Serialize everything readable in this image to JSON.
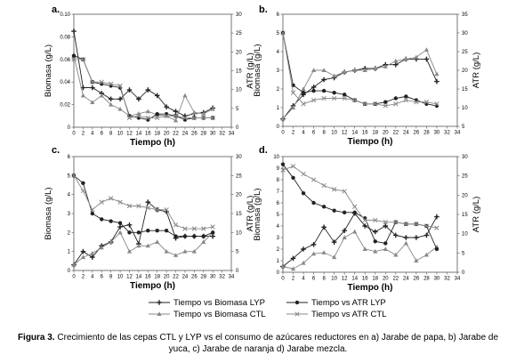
{
  "figure": {
    "caption_bold": "Figura 3.",
    "caption_text": "Crecimiento de las cepas CTL y LYP vs el consumo de azúcares reductores en a) Jarabe de papa, b) Jarabe de yuca, c) Jarabe de naranja d) Jarabe mezcla."
  },
  "legend": [
    {
      "label": "Tiempo vs Biomasa LYP",
      "marker": "plus",
      "color": "#222222"
    },
    {
      "label": "Tiempo vs ATR LYP",
      "marker": "dot",
      "color": "#222222"
    },
    {
      "label": "Tiempo vs Biomasa CTL",
      "marker": "triangle",
      "color": "#888888"
    },
    {
      "label": "Tiempo vs ATR CTL",
      "marker": "cross",
      "color": "#888888"
    }
  ],
  "chart_data": [
    {
      "panel": "a.",
      "type": "line",
      "xlabel": "Tiempo (h)",
      "ylabel": "Biomasa (g/L)",
      "y2label": "ATR (g/L)",
      "xlim": [
        0,
        34
      ],
      "xticks": [
        "0",
        "2",
        "4",
        "6",
        "8",
        "10",
        "12",
        "14",
        "16",
        "18",
        "20",
        "22",
        "24",
        "26",
        "28",
        "30",
        "32",
        "34"
      ],
      "ylim": [
        0,
        0.1
      ],
      "yticks": [
        "0",
        "0.02",
        "0.04",
        "0.06",
        "0.08",
        "0.10"
      ],
      "y2lim": [
        0,
        30
      ],
      "y2ticks": [
        "0",
        "5",
        "10",
        "15",
        "20",
        "25",
        "30"
      ],
      "series": [
        {
          "name": "Tiempo vs Biomasa LYP",
          "axis": "left",
          "x": [
            0,
            2,
            4,
            6,
            8,
            10,
            12,
            14,
            16,
            18,
            20,
            22,
            24,
            26,
            28,
            30
          ],
          "y": [
            0.085,
            0.035,
            0.035,
            0.03,
            0.025,
            0.025,
            0.033,
            0.025,
            0.033,
            0.028,
            0.018,
            0.014,
            0.01,
            0.012,
            0.013,
            0.017
          ]
        },
        {
          "name": "Tiempo vs Biomasa CTL",
          "axis": "left",
          "x": [
            0,
            2,
            4,
            6,
            8,
            10,
            12,
            14,
            16,
            18,
            20,
            22,
            24,
            26,
            28,
            30
          ],
          "y": [
            0.063,
            0.028,
            0.022,
            0.028,
            0.02,
            0.016,
            0.01,
            0.012,
            0.014,
            0.011,
            0.01,
            0.006,
            0.028,
            0.013,
            0.012,
            0.016
          ]
        },
        {
          "name": "Tiempo vs ATR LYP",
          "axis": "right",
          "x": [
            0,
            2,
            4,
            6,
            8,
            10,
            12,
            14,
            16,
            18,
            20,
            22,
            24,
            26,
            28,
            30
          ],
          "y": [
            19,
            18,
            12,
            11.5,
            11,
            10.5,
            3,
            2.5,
            2,
            3.5,
            3.5,
            3,
            2,
            2.5,
            2.5,
            2.5
          ]
        },
        {
          "name": "Tiempo vs ATR CTL",
          "axis": "right",
          "x": [
            0,
            2,
            4,
            6,
            8,
            10,
            12,
            14,
            16,
            18,
            20,
            22,
            24,
            26,
            28,
            30
          ],
          "y": [
            18,
            18,
            12,
            12,
            11.5,
            11,
            2.5,
            3,
            2.5,
            2.5,
            3,
            3,
            2.5,
            2.5,
            2.5,
            2.5
          ]
        }
      ]
    },
    {
      "panel": "b.",
      "type": "line",
      "xlabel": "Tiempo (h)",
      "ylabel": "Biomasa (g/L)",
      "y2label": "ATR (g/L)",
      "xlim": [
        0,
        34
      ],
      "xticks": [
        "0",
        "2",
        "4",
        "6",
        "8",
        "10",
        "12",
        "14",
        "16",
        "18",
        "20",
        "22",
        "24",
        "26",
        "28",
        "30",
        "32",
        "34"
      ],
      "ylim": [
        0,
        6
      ],
      "yticks": [
        "0",
        "1",
        "2",
        "3",
        "4",
        "5",
        "6"
      ],
      "y2lim": [
        5,
        35
      ],
      "y2ticks": [
        "5",
        "10",
        "15",
        "20",
        "25",
        "30",
        "35"
      ],
      "series": [
        {
          "name": "Tiempo vs Biomasa LYP",
          "axis": "left",
          "x": [
            0,
            2,
            4,
            6,
            8,
            10,
            12,
            14,
            16,
            18,
            20,
            22,
            24,
            26,
            28,
            30
          ],
          "y": [
            0.4,
            1.1,
            1.7,
            2.1,
            2.5,
            2.6,
            2.9,
            3.0,
            3.1,
            3.1,
            3.3,
            3.3,
            3.6,
            3.6,
            3.6,
            2.4
          ]
        },
        {
          "name": "Tiempo vs Biomasa CTL",
          "axis": "left",
          "x": [
            0,
            2,
            4,
            6,
            8,
            10,
            12,
            14,
            16,
            18,
            20,
            22,
            24,
            26,
            28,
            30
          ],
          "y": [
            0.4,
            1.0,
            2.0,
            3.0,
            3.0,
            2.7,
            2.9,
            3.0,
            3.0,
            3.1,
            3.2,
            3.5,
            3.6,
            3.7,
            4.1,
            2.8
          ]
        },
        {
          "name": "Tiempo vs ATR LYP",
          "axis": "right",
          "x": [
            0,
            2,
            4,
            6,
            8,
            10,
            12,
            14,
            16,
            18,
            20,
            22,
            24,
            26,
            28,
            30
          ],
          "y": [
            30,
            16,
            14,
            14.5,
            14.5,
            14,
            13.5,
            12,
            11,
            11,
            11.5,
            12.5,
            13,
            12,
            11,
            10.5
          ]
        },
        {
          "name": "Tiempo vs ATR CTL",
          "axis": "right",
          "x": [
            0,
            2,
            4,
            6,
            8,
            10,
            12,
            14,
            16,
            18,
            20,
            22,
            24,
            26,
            28,
            30
          ],
          "y": [
            30,
            14,
            11,
            12,
            12.5,
            12.5,
            12.5,
            12,
            11,
            11,
            10.5,
            11,
            12,
            11.5,
            11.5,
            11
          ]
        }
      ]
    },
    {
      "panel": "c.",
      "type": "line",
      "xlabel": "Tiempo (h)",
      "ylabel": "Biomasa (g/L)",
      "y2label": "ATR (g/L)",
      "xlim": [
        0,
        34
      ],
      "xticks": [
        "0",
        "2",
        "4",
        "6",
        "8",
        "10",
        "12",
        "14",
        "16",
        "18",
        "20",
        "22",
        "24",
        "26",
        "28",
        "30",
        "32",
        "34"
      ],
      "ylim": [
        0,
        6
      ],
      "yticks": [
        "0",
        "1",
        "2",
        "3",
        "4",
        "5",
        "6"
      ],
      "y2lim": [
        0,
        30
      ],
      "y2ticks": [
        "0",
        "5",
        "10",
        "15",
        "20",
        "25",
        "30"
      ],
      "series": [
        {
          "name": "Tiempo vs Biomasa LYP",
          "axis": "left",
          "x": [
            0,
            2,
            4,
            6,
            8,
            10,
            12,
            14,
            16,
            18,
            20,
            22,
            24,
            26,
            28,
            30
          ],
          "y": [
            0.3,
            1.0,
            0.7,
            1.3,
            1.5,
            2.3,
            2.4,
            1.4,
            3.6,
            3.2,
            3.1,
            1.7,
            1.8,
            1.8,
            1.8,
            1.8
          ]
        },
        {
          "name": "Tiempo vs Biomasa CTL",
          "axis": "left",
          "x": [
            0,
            2,
            4,
            6,
            8,
            10,
            12,
            14,
            16,
            18,
            20,
            22,
            24,
            26,
            28,
            30
          ],
          "y": [
            0.3,
            0.7,
            0.9,
            1.2,
            1.5,
            2.0,
            1.0,
            1.3,
            1.3,
            1.5,
            1.0,
            0.8,
            1.0,
            1.0,
            1.5,
            2.0
          ]
        },
        {
          "name": "Tiempo vs ATR LYP",
          "axis": "right",
          "x": [
            0,
            2,
            4,
            6,
            8,
            10,
            12,
            14,
            16,
            18,
            20,
            22,
            24,
            26,
            28,
            30
          ],
          "y": [
            25,
            23,
            15,
            13.5,
            13,
            12.5,
            10,
            10,
            10.5,
            10.5,
            10.5,
            9,
            9,
            9,
            9,
            10
          ]
        },
        {
          "name": "Tiempo vs ATR CTL",
          "axis": "right",
          "x": [
            0,
            2,
            4,
            6,
            8,
            10,
            12,
            14,
            16,
            18,
            20,
            22,
            24,
            26,
            28,
            30
          ],
          "y": [
            25,
            21,
            16,
            18,
            19,
            18,
            17,
            17,
            16.5,
            16,
            16,
            12,
            11,
            11,
            11,
            11.5
          ]
        }
      ]
    },
    {
      "panel": "d.",
      "type": "line",
      "xlabel": "Tiempo (h)",
      "ylabel": "Biomasa (g/L)",
      "y2label": "ATR (g/L)",
      "xlim": [
        0,
        34
      ],
      "xticks": [
        "0",
        "2",
        "4",
        "6",
        "8",
        "10",
        "12",
        "14",
        "16",
        "18",
        "20",
        "22",
        "24",
        "26",
        "28",
        "30",
        "32",
        "34"
      ],
      "ylim": [
        0,
        10
      ],
      "yticks": [
        "0",
        "1",
        "2",
        "3",
        "4",
        "5",
        "6",
        "7",
        "8",
        "9",
        "10"
      ],
      "y2lim": [
        0,
        30
      ],
      "y2ticks": [
        "0",
        "5",
        "10",
        "15",
        "20",
        "25",
        "30"
      ],
      "series": [
        {
          "name": "Tiempo vs Biomasa LYP",
          "axis": "left",
          "x": [
            0,
            2,
            4,
            6,
            8,
            10,
            12,
            14,
            16,
            18,
            20,
            22,
            24,
            26,
            28,
            30
          ],
          "y": [
            0.5,
            1.2,
            2.0,
            2.4,
            3.9,
            2.6,
            3.6,
            5.1,
            4.0,
            3.5,
            4.0,
            3.2,
            3.0,
            3.0,
            3.2,
            4.8
          ]
        },
        {
          "name": "Tiempo vs Biomasa CTL",
          "axis": "left",
          "x": [
            0,
            2,
            4,
            6,
            8,
            10,
            12,
            14,
            16,
            18,
            20,
            22,
            24,
            26,
            28,
            30
          ],
          "y": [
            0.5,
            0.3,
            0.8,
            1.6,
            1.7,
            1.3,
            3.0,
            3.5,
            2.0,
            1.8,
            2.0,
            1.5,
            2.5,
            1.0,
            1.5,
            2.2
          ]
        },
        {
          "name": "Tiempo vs ATR LYP",
          "axis": "right",
          "x": [
            0,
            2,
            4,
            6,
            8,
            10,
            12,
            14,
            16,
            18,
            20,
            22,
            24,
            26,
            28,
            30
          ],
          "y": [
            28,
            24.5,
            20.5,
            18,
            17,
            16,
            15.5,
            15.5,
            14,
            8,
            7.5,
            13,
            12.5,
            12.5,
            12,
            6
          ]
        },
        {
          "name": "Tiempo vs ATR CTL",
          "axis": "right",
          "x": [
            0,
            2,
            4,
            6,
            8,
            10,
            12,
            14,
            16,
            18,
            20,
            22,
            24,
            26,
            28,
            30
          ],
          "y": [
            26.5,
            27.5,
            25.5,
            24,
            22.5,
            21.5,
            21,
            17,
            13.5,
            13.5,
            13,
            13,
            12.5,
            12.5,
            12,
            11.5
          ]
        }
      ]
    }
  ]
}
